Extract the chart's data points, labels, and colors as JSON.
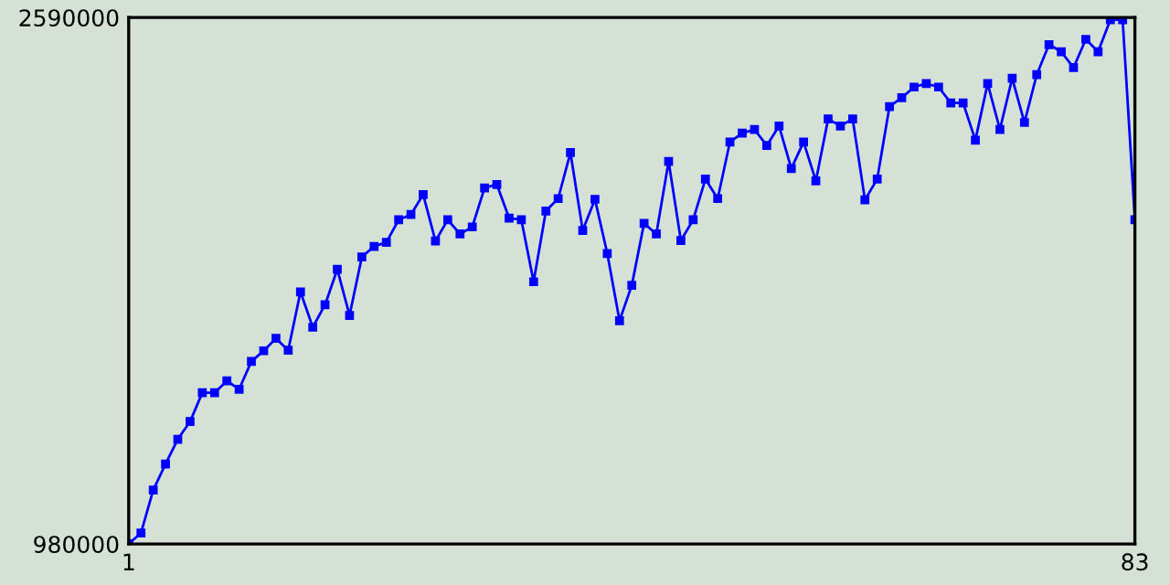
{
  "chart_data": {
    "type": "line",
    "x": [
      1,
      2,
      3,
      4,
      5,
      6,
      7,
      8,
      9,
      10,
      11,
      12,
      13,
      14,
      15,
      16,
      17,
      18,
      19,
      20,
      21,
      22,
      23,
      24,
      25,
      26,
      27,
      28,
      29,
      30,
      31,
      32,
      33,
      34,
      35,
      36,
      37,
      38,
      39,
      40,
      41,
      42,
      43,
      44,
      45,
      46,
      47,
      48,
      49,
      50,
      51,
      52,
      53,
      54,
      55,
      56,
      57,
      58,
      59,
      60,
      61,
      62,
      63,
      64,
      65,
      66,
      67,
      68,
      69,
      70,
      71,
      72,
      73,
      74,
      75,
      76,
      77,
      78,
      79,
      80,
      81,
      82,
      83
    ],
    "series": [
      {
        "color": "#0000ff",
        "values": [
          981000,
          1013600,
          1145100,
          1224600,
          1300400,
          1354500,
          1442700,
          1442700,
          1479000,
          1453500,
          1538500,
          1571000,
          1608900,
          1572600,
          1751200,
          1643000,
          1711700,
          1819900,
          1679200,
          1857800,
          1890300,
          1902700,
          1971500,
          1987700,
          2048900,
          1906500,
          1971500,
          1928200,
          1949800,
          2068900,
          2079700,
          1976900,
          1971500,
          1782100,
          1998500,
          2036400,
          2177100,
          1939000,
          2034300,
          1868600,
          1663000,
          1771200,
          1960700,
          1928200,
          2150100,
          1908200,
          1971500,
          2096000,
          2036400,
          2209600,
          2236700,
          2247500,
          2198800,
          2258300,
          2128400,
          2209600,
          2090500,
          2280000,
          2258300,
          2280000,
          2032600,
          2096000,
          2317800,
          2344900,
          2377400,
          2388200,
          2377400,
          2328700,
          2328700,
          2215000,
          2388200,
          2247500,
          2404400,
          2269100,
          2415300,
          2507300,
          2485600,
          2436900,
          2523500,
          2485600,
          2583000,
          2583000,
          1971500
        ]
      }
    ],
    "xlim": [
      1,
      83
    ],
    "ylim": [
      980000,
      2590000
    ],
    "xticks": [
      1,
      83
    ],
    "yticks": [
      980000,
      2590000
    ],
    "marker": "square",
    "line_style": "solid"
  }
}
